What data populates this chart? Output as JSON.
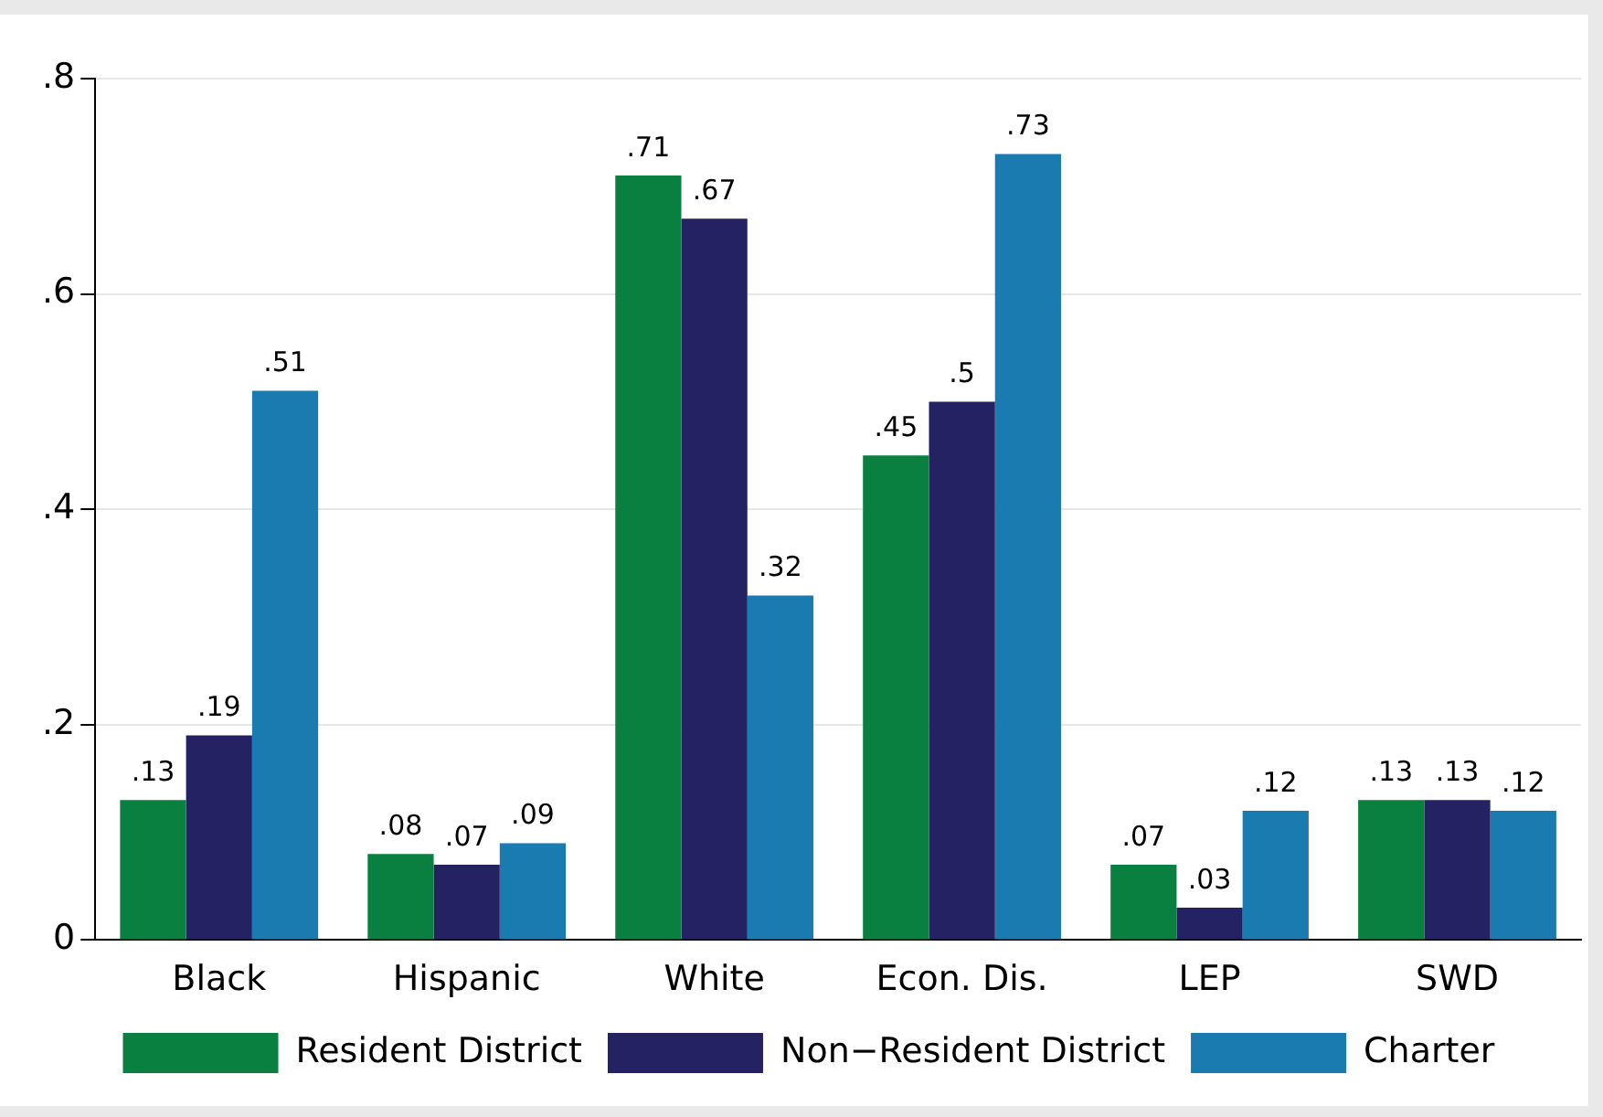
{
  "chart_data": {
    "type": "bar",
    "categories": [
      "Black",
      "Hispanic",
      "White",
      "Econ. Dis.",
      "LEP",
      "SWD"
    ],
    "series": [
      {
        "name": "Resident District",
        "color": "#0a8040",
        "values": [
          0.13,
          0.08,
          0.71,
          0.45,
          0.07,
          0.13
        ],
        "value_labels": [
          ".13",
          ".08",
          ".71",
          ".45",
          ".07",
          ".13"
        ]
      },
      {
        "name": "Non−Resident District",
        "color": "#252264",
        "values": [
          0.19,
          0.07,
          0.67,
          0.5,
          0.03,
          0.13
        ],
        "value_labels": [
          ".19",
          ".07",
          ".67",
          ".5",
          ".03",
          ".13"
        ]
      },
      {
        "name": "Charter",
        "color": "#1a7bb0",
        "values": [
          0.51,
          0.09,
          0.32,
          0.73,
          0.12,
          0.12
        ],
        "value_labels": [
          ".51",
          ".09",
          ".32",
          ".73",
          ".12",
          ".12"
        ]
      }
    ],
    "ylim": [
      0,
      0.8
    ],
    "yticks": [
      {
        "value": 0,
        "label": "0"
      },
      {
        "value": 0.2,
        "label": ".2"
      },
      {
        "value": 0.4,
        "label": ".4"
      },
      {
        "value": 0.6,
        "label": ".6"
      },
      {
        "value": 0.8,
        "label": ".8"
      }
    ],
    "grid": "y",
    "legend": "bottom"
  }
}
